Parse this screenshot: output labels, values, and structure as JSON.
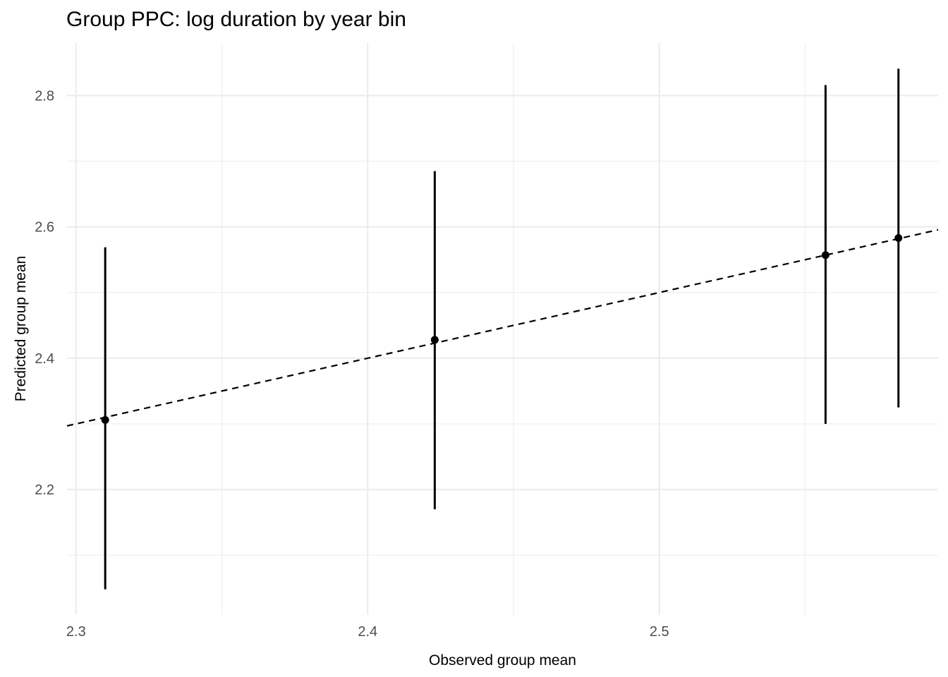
{
  "chart_data": {
    "type": "scatter",
    "title": "Group PPC: log duration by year bin",
    "xlabel": "Observed group mean",
    "ylabel": "Predicted group mean",
    "xlim": [
      2.2969,
      2.5956
    ],
    "ylim": [
      2.009,
      2.88
    ],
    "x_major_ticks": [
      2.3,
      2.4,
      2.5
    ],
    "x_tick_labels": [
      "2.3",
      "2.4",
      "2.5"
    ],
    "x_minor_ticks": [
      2.35,
      2.45,
      2.55
    ],
    "y_major_ticks": [
      2.2,
      2.4,
      2.6,
      2.8
    ],
    "y_tick_labels": [
      "2.2",
      "2.4",
      "2.6",
      "2.8"
    ],
    "y_minor_ticks": [
      2.1,
      2.3,
      2.5,
      2.7
    ],
    "grid": true,
    "legend": false,
    "reference_line": {
      "slope": 1,
      "intercept": 0,
      "dashed": true
    },
    "series": [
      {
        "points": [
          {
            "x": 2.31,
            "y": 2.306,
            "lower": 2.048,
            "upper": 2.569
          },
          {
            "x": 2.423,
            "y": 2.428,
            "lower": 2.17,
            "upper": 2.685
          },
          {
            "x": 2.557,
            "y": 2.557,
            "lower": 2.3,
            "upper": 2.816
          },
          {
            "x": 2.582,
            "y": 2.583,
            "lower": 2.325,
            "upper": 2.841
          }
        ]
      }
    ],
    "colors": {
      "background": "#FFFFFF",
      "grid_major": "#EBEBEB",
      "grid_minor": "#F0F0F0",
      "point": "#000000",
      "error_bar": "#000000",
      "reference_line": "#000000",
      "tick_label": "#4D4D4D",
      "text": "#000000"
    }
  }
}
